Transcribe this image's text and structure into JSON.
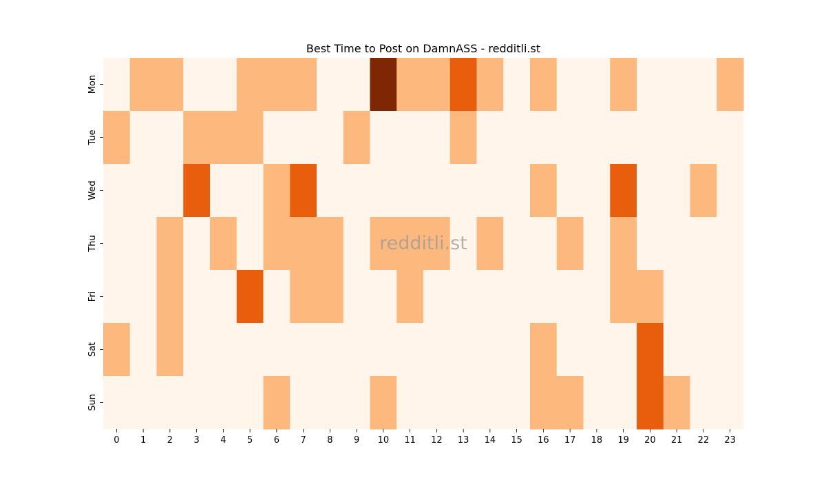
{
  "chart_data": {
    "type": "heatmap",
    "title": "Best Time to Post on DamnASS - redditli.st",
    "watermark": "redditli.st",
    "xlabel": "",
    "ylabel": "",
    "x_categories": [
      "0",
      "1",
      "2",
      "3",
      "4",
      "5",
      "6",
      "7",
      "8",
      "9",
      "10",
      "11",
      "12",
      "13",
      "14",
      "15",
      "16",
      "17",
      "18",
      "19",
      "20",
      "21",
      "22",
      "23"
    ],
    "y_categories": [
      "Mon",
      "Tue",
      "Wed",
      "Thu",
      "Fri",
      "Sat",
      "Sun"
    ],
    "values": [
      [
        0,
        1,
        1,
        0,
        0,
        1,
        1,
        1,
        0,
        0,
        4,
        1,
        1,
        2,
        1,
        0,
        1,
        0,
        0,
        1,
        0,
        0,
        0,
        1
      ],
      [
        1,
        0,
        0,
        1,
        1,
        1,
        0,
        0,
        0,
        1,
        0,
        0,
        0,
        1,
        0,
        0,
        0,
        0,
        0,
        0,
        0,
        0,
        0,
        0
      ],
      [
        0,
        0,
        0,
        2,
        0,
        0,
        1,
        2,
        0,
        0,
        0,
        0,
        0,
        0,
        0,
        0,
        1,
        0,
        0,
        2,
        0,
        0,
        1,
        0
      ],
      [
        0,
        0,
        1,
        0,
        1,
        0,
        1,
        1,
        1,
        0,
        1,
        1,
        1,
        0,
        1,
        0,
        0,
        1,
        0,
        1,
        0,
        0,
        0,
        0
      ],
      [
        0,
        0,
        1,
        0,
        0,
        2,
        0,
        1,
        1,
        0,
        0,
        1,
        0,
        0,
        0,
        0,
        0,
        0,
        0,
        1,
        1,
        0,
        0,
        0
      ],
      [
        1,
        0,
        1,
        0,
        0,
        0,
        0,
        0,
        0,
        0,
        0,
        0,
        0,
        0,
        0,
        0,
        1,
        0,
        0,
        0,
        2,
        0,
        0,
        0
      ],
      [
        0,
        0,
        0,
        0,
        0,
        0,
        1,
        0,
        0,
        0,
        1,
        0,
        0,
        0,
        0,
        0,
        1,
        1,
        0,
        0,
        2,
        1,
        0,
        0
      ]
    ],
    "colormap": "Oranges",
    "color_scale": [
      "#fff5eb",
      "#fdb97d",
      "#e95e0d",
      "#e95e0d",
      "#7f2704"
    ],
    "colorbar": false,
    "grid": false
  }
}
